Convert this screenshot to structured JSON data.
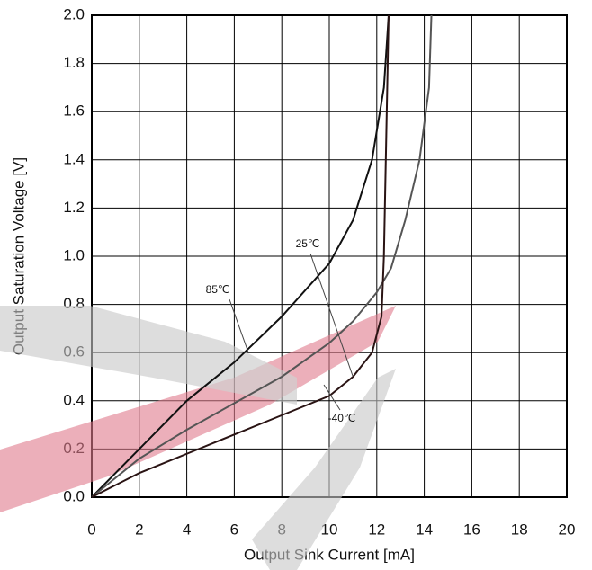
{
  "chart_data": {
    "type": "line",
    "xlabel": "Output Sink Current [mA]",
    "ylabel": "Output Saturation Voltage [V]",
    "xlim": [
      0,
      20
    ],
    "ylim": [
      0,
      2
    ],
    "xticks": [
      0,
      2,
      4,
      6,
      8,
      10,
      12,
      14,
      16,
      18,
      20
    ],
    "yticks": [
      {
        "value": 0,
        "label": "0.0"
      },
      0.2,
      0.4,
      0.6,
      0.8,
      {
        "value": 1,
        "label": "1.0"
      },
      1.2,
      1.4,
      1.6,
      1.8,
      {
        "value": 2,
        "label": "2.0"
      }
    ],
    "grid": true,
    "series": [
      {
        "name": "85℃",
        "color": "#111111",
        "x": [
          0,
          1,
          2,
          4,
          6,
          8,
          10,
          11,
          11.8,
          12.3,
          12.5
        ],
        "values": [
          0,
          0.1,
          0.2,
          0.4,
          0.56,
          0.75,
          0.97,
          1.15,
          1.4,
          1.7,
          2.0
        ]
      },
      {
        "name": "25℃",
        "color": "#555555",
        "x": [
          0,
          2,
          4,
          6,
          8,
          10,
          11,
          12,
          12.6,
          13.2,
          13.8,
          14.2,
          14.3
        ],
        "values": [
          0,
          0.16,
          0.28,
          0.39,
          0.5,
          0.64,
          0.73,
          0.85,
          0.95,
          1.15,
          1.4,
          1.7,
          2.0
        ]
      },
      {
        "name": "-40℃",
        "color": "#2a1414",
        "x": [
          0,
          2,
          4,
          6,
          8,
          10,
          11,
          11.8,
          12.2,
          12.3,
          12.4,
          12.5
        ],
        "values": [
          0,
          0.1,
          0.18,
          0.26,
          0.34,
          0.42,
          0.5,
          0.6,
          0.75,
          1.0,
          1.5,
          2.0
        ]
      }
    ]
  }
}
